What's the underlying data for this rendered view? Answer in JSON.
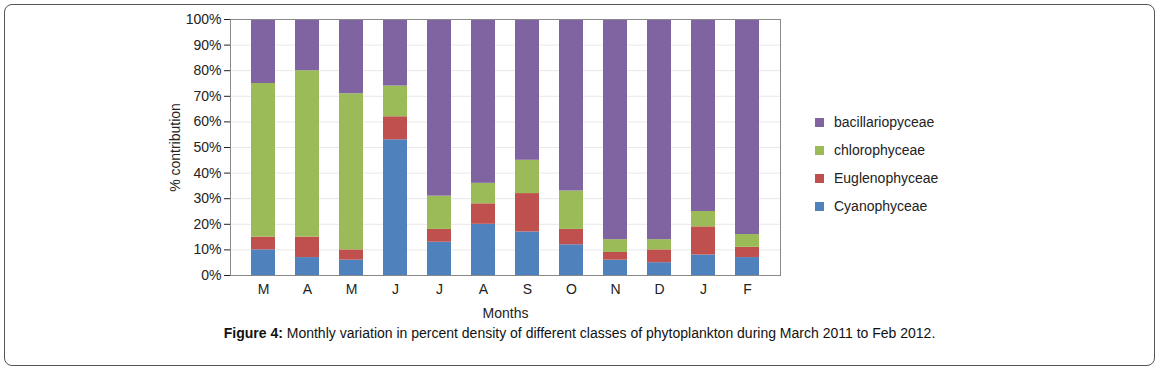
{
  "chart_data": {
    "type": "bar",
    "stacked": true,
    "title": "Figure 4: Monthly variation in percent density of different classes of phytoplankton during March 2011 to Feb 2012.",
    "x_label": "Months",
    "y_label": "% contribution",
    "categories": [
      "M",
      "A",
      "M",
      "J",
      "J",
      "A",
      "S",
      "O",
      "N",
      "D",
      "J",
      "F"
    ],
    "series": [
      {
        "name": "Cyanophyceae",
        "color": "#4f81bd",
        "values": [
          10,
          7,
          6,
          53,
          13,
          20,
          17,
          12,
          6,
          5,
          8,
          7
        ]
      },
      {
        "name": "Euglenophyceae",
        "color": "#c0504d",
        "values": [
          5,
          8,
          4,
          9,
          5,
          8,
          15,
          6,
          3,
          5,
          11,
          4
        ]
      },
      {
        "name": "chlorophyceae",
        "color": "#9bbb59",
        "values": [
          60,
          65,
          61,
          12,
          13,
          8,
          13,
          15,
          5,
          4,
          6,
          5
        ]
      },
      {
        "name": "bacillariopyceae",
        "color": "#8064a2",
        "values": [
          25,
          20,
          29,
          26,
          69,
          64,
          55,
          67,
          86,
          86,
          75,
          84
        ]
      }
    ],
    "ylim": [
      0,
      100
    ],
    "yticks": [
      {
        "value": 0,
        "label": "0%"
      },
      {
        "value": 10,
        "label": "10%"
      },
      {
        "value": 20,
        "label": "20%"
      },
      {
        "value": 30,
        "label": "30%"
      },
      {
        "value": 40,
        "label": "40%"
      },
      {
        "value": 50,
        "label": "50%"
      },
      {
        "value": 60,
        "label": "60%"
      },
      {
        "value": 70,
        "label": "70%"
      },
      {
        "value": 80,
        "label": "80%"
      },
      {
        "value": 90,
        "label": "90%"
      },
      {
        "value": 100,
        "label": "100%"
      }
    ],
    "grid": true,
    "legend": "right",
    "data_labels": false
  }
}
